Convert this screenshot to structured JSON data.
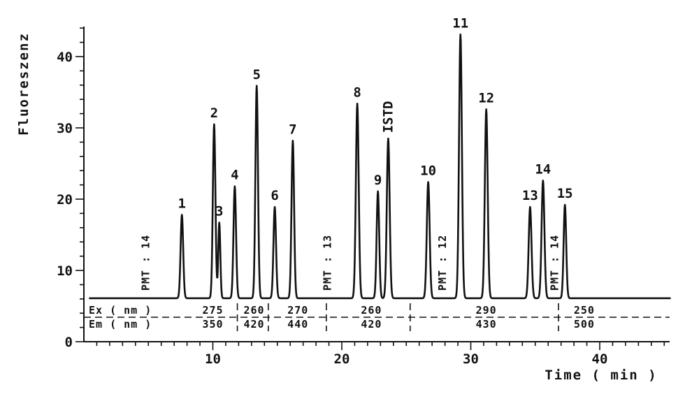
{
  "chart_data": {
    "type": "line",
    "xlabel": "Time ( min )",
    "ylabel": "Fluoreszenz",
    "xlim": [
      0,
      45.5
    ],
    "ylim": [
      0,
      45
    ],
    "x_ticks": [
      10,
      20,
      30,
      40
    ],
    "x_tick_labels": [
      "10",
      "20",
      "30",
      "40"
    ],
    "y_ticks": [
      0,
      10,
      20,
      30,
      40
    ],
    "y_tick_labels": [
      "0",
      "10",
      "20",
      "30",
      "40"
    ],
    "baseline": 6.1,
    "peaks": [
      {
        "label": "1",
        "x": 7.6,
        "y": 17.8,
        "width": 0.1
      },
      {
        "label": "2",
        "x": 10.1,
        "y": 30.5,
        "width": 0.1
      },
      {
        "label": "3",
        "x": 10.5,
        "y": 16.7,
        "width": 0.08
      },
      {
        "label": "4",
        "x": 11.7,
        "y": 21.8,
        "width": 0.1
      },
      {
        "label": "5",
        "x": 13.4,
        "y": 35.9,
        "width": 0.1
      },
      {
        "label": "6",
        "x": 14.8,
        "y": 18.9,
        "width": 0.1
      },
      {
        "label": "7",
        "x": 16.2,
        "y": 28.2,
        "width": 0.1
      },
      {
        "label": "8",
        "x": 21.2,
        "y": 33.4,
        "width": 0.11
      },
      {
        "label": "9",
        "x": 22.8,
        "y": 21.1,
        "width": 0.1
      },
      {
        "label": "ISTD",
        "x": 23.6,
        "y": 28.5,
        "width": 0.11
      },
      {
        "label": "10",
        "x": 26.7,
        "y": 22.4,
        "width": 0.11
      },
      {
        "label": "11",
        "x": 29.2,
        "y": 43.1,
        "width": 0.11
      },
      {
        "label": "12",
        "x": 31.2,
        "y": 32.6,
        "width": 0.11
      },
      {
        "label": "13",
        "x": 34.6,
        "y": 18.9,
        "width": 0.11
      },
      {
        "label": "14",
        "x": 35.6,
        "y": 22.6,
        "width": 0.11
      },
      {
        "label": "15",
        "x": 37.3,
        "y": 19.2,
        "width": 0.1
      }
    ],
    "pmt_annotations": [
      {
        "text": "PMT : 14",
        "x": 4.8
      },
      {
        "text": "PMT : 13",
        "x": 18.9
      },
      {
        "text": "PMT : 12",
        "x": 27.8
      },
      {
        "text": "PMT : 14",
        "x": 36.5
      }
    ],
    "wavelength_table": {
      "dividers": [
        11.9,
        14.3,
        18.8,
        25.3,
        36.8
      ],
      "rows": [
        {
          "label": "Ex ( nm )",
          "values": [
            {
              "text": "275",
              "x": 10.0
            },
            {
              "text": "260",
              "x": 13.2
            },
            {
              "text": "270",
              "x": 16.6
            },
            {
              "text": "260",
              "x": 22.3
            },
            {
              "text": "290",
              "x": 31.2
            },
            {
              "text": "250",
              "x": 38.8
            }
          ]
        },
        {
          "label": "Em ( nm )",
          "values": [
            {
              "text": "350",
              "x": 10.0
            },
            {
              "text": "420",
              "x": 13.2
            },
            {
              "text": "440",
              "x": 16.6
            },
            {
              "text": "420",
              "x": 22.3
            },
            {
              "text": "430",
              "x": 31.2
            },
            {
              "text": "500",
              "x": 38.8
            }
          ]
        }
      ]
    }
  }
}
